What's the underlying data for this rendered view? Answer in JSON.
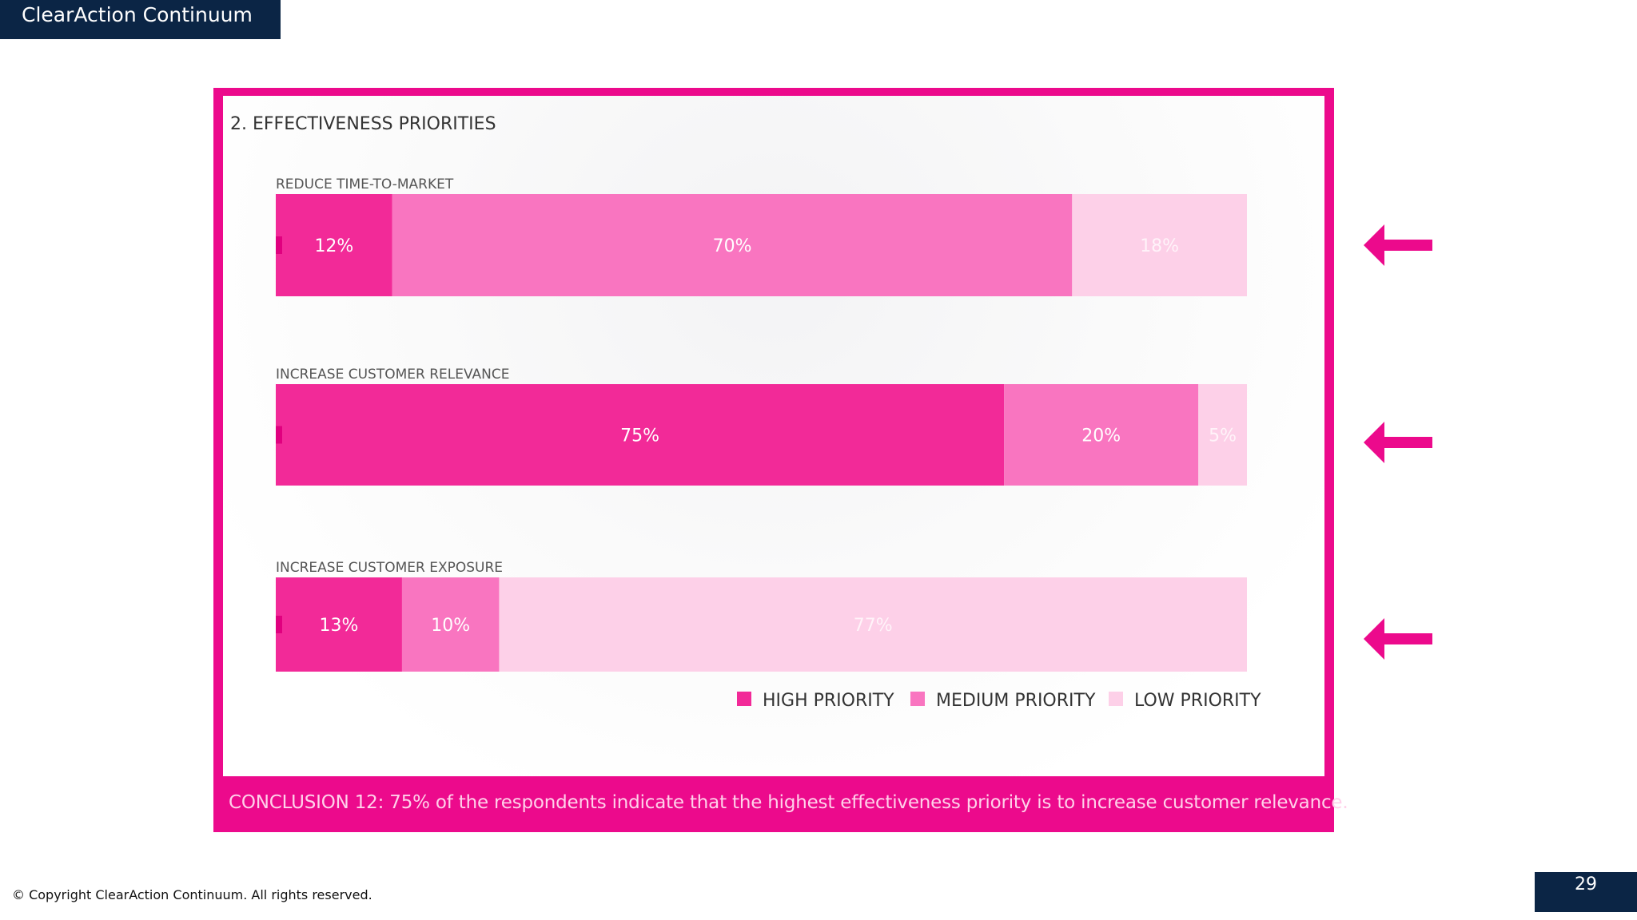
{
  "header": {
    "brand": "ClearAction Continuum"
  },
  "chart_data": {
    "type": "bar",
    "orientation": "horizontal",
    "stacked": true,
    "title": "2. EFFECTIVENESS PRIORITIES",
    "categories": [
      "REDUCE TIME-TO-MARKET",
      "INCREASE CUSTOMER RELEVANCE",
      "INCREASE CUSTOMER EXPOSURE"
    ],
    "series": [
      {
        "name": "HIGH PRIORITY",
        "values": [
          12,
          75,
          13
        ],
        "labels": [
          "12%",
          "75%",
          "13%"
        ],
        "color": "#f22a98"
      },
      {
        "name": "MEDIUM PRIORITY",
        "values": [
          70,
          20,
          10
        ],
        "labels": [
          "70%",
          "20%",
          "10%"
        ],
        "color": "#f975c0"
      },
      {
        "name": "LOW PRIORITY",
        "values": [
          18,
          5,
          77
        ],
        "labels": [
          "18%",
          "5%",
          "77%"
        ],
        "color": "#fdd0e8"
      }
    ],
    "xlim": [
      0,
      100
    ],
    "legend": "bottom-right",
    "grid": false
  },
  "conclusion": "CONCLUSION 12: 75% of the respondents indicate that the highest effectiveness priority is to increase customer relevance.",
  "footer": {
    "copyright": "© Copyright ClearAction Continuum. All rights reserved.",
    "page": "29"
  },
  "colors": {
    "accent": "#ec0a8c",
    "navy": "#0b2545",
    "high": "#f22a98",
    "medium": "#f975c0",
    "low": "#fdd0e8"
  },
  "icons": {
    "row_marker": "left-arrow-icon"
  }
}
